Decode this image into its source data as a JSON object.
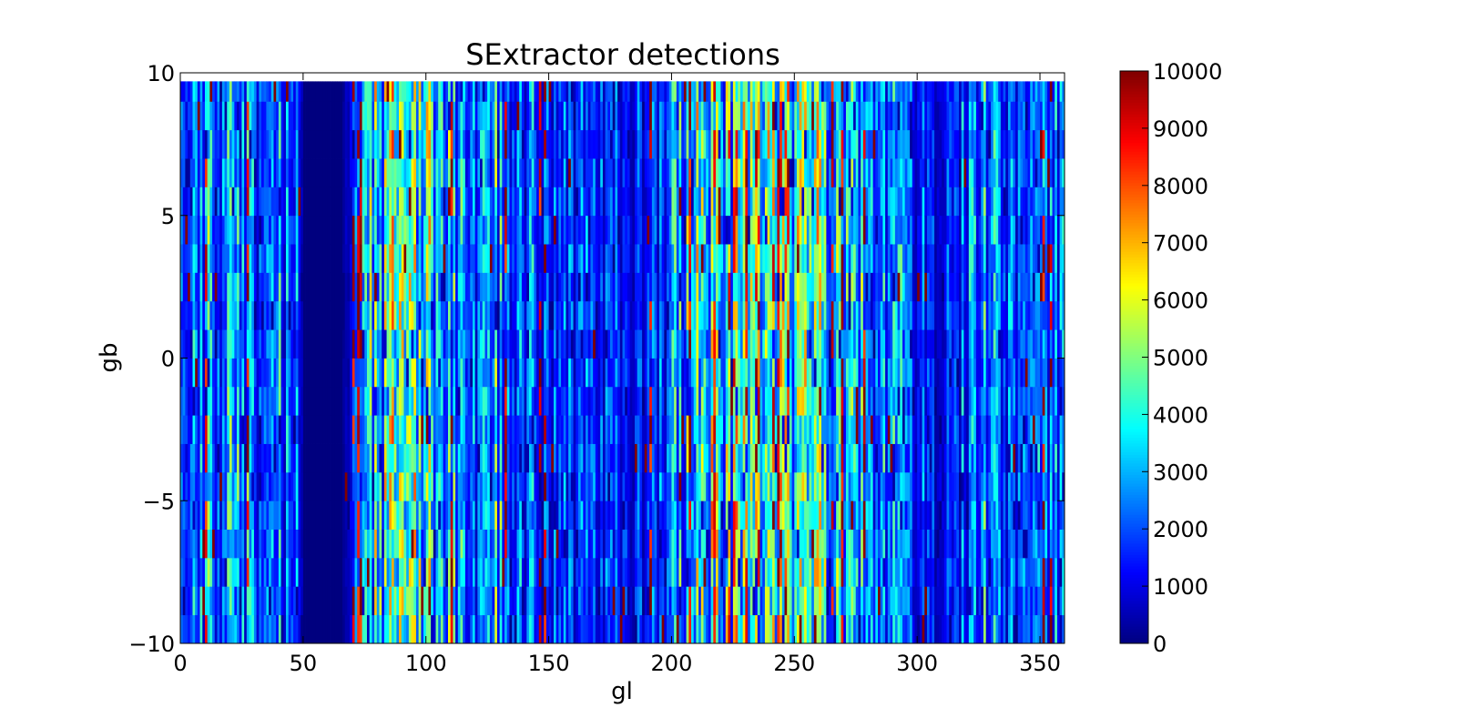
{
  "chart_data": {
    "type": "heatmap",
    "title": "SExtractor detections",
    "xlabel": "gl",
    "ylabel": "gb",
    "xlim": [
      0,
      360
    ],
    "ylim": [
      -10,
      10
    ],
    "x_ticks": [
      0,
      50,
      100,
      150,
      200,
      250,
      300,
      350
    ],
    "x_tick_labels": [
      "0",
      "50",
      "100",
      "150",
      "200",
      "250",
      "300",
      "350"
    ],
    "y_ticks": [
      -10,
      -5,
      0,
      5,
      10
    ],
    "y_tick_labels": [
      "−10",
      "−5",
      "0",
      "5",
      "10"
    ],
    "colorbar": {
      "min": 0,
      "max": 10000,
      "ticks": [
        0,
        1000,
        2000,
        3000,
        4000,
        5000,
        6000,
        7000,
        8000,
        9000,
        10000
      ],
      "tick_labels": [
        "0",
        "1000",
        "2000",
        "3000",
        "4000",
        "5000",
        "6000",
        "7000",
        "8000",
        "9000",
        "10000"
      ],
      "colormap": "jet"
    },
    "grid": {
      "x_bins": 360,
      "x_bin_width": 1,
      "y_edges": [
        -10,
        -9,
        -8,
        -7,
        -6,
        -5,
        -4,
        -3,
        -2,
        -1,
        0,
        1,
        2,
        3,
        4,
        5,
        6,
        7,
        8,
        9,
        9.7
      ],
      "empty_x_ranges": [
        [
          50,
          66
        ]
      ]
    },
    "colors": {
      "empty_cell": "#00007f",
      "axes_background": "#ffffff",
      "frame": "#000000"
    },
    "column_profile": {
      "x_nodes": [
        0,
        10,
        20,
        30,
        40,
        50,
        66,
        75,
        85,
        100,
        110,
        125,
        140,
        150,
        160,
        170,
        180,
        190,
        200,
        210,
        220,
        230,
        240,
        250,
        260,
        270,
        280,
        290,
        300,
        310,
        320,
        330,
        340,
        350,
        360
      ],
      "base": [
        1800,
        2500,
        2600,
        2000,
        2100,
        1500,
        0,
        2600,
        3200,
        3200,
        2300,
        2500,
        1800,
        1700,
        1500,
        1300,
        1200,
        1400,
        2200,
        3000,
        3800,
        4200,
        4500,
        4000,
        3000,
        2400,
        2300,
        2100,
        1600,
        1000,
        1800,
        2200,
        1500,
        1700,
        1900
      ],
      "spike_probability": 0.09,
      "spike_value": 10000
    }
  }
}
